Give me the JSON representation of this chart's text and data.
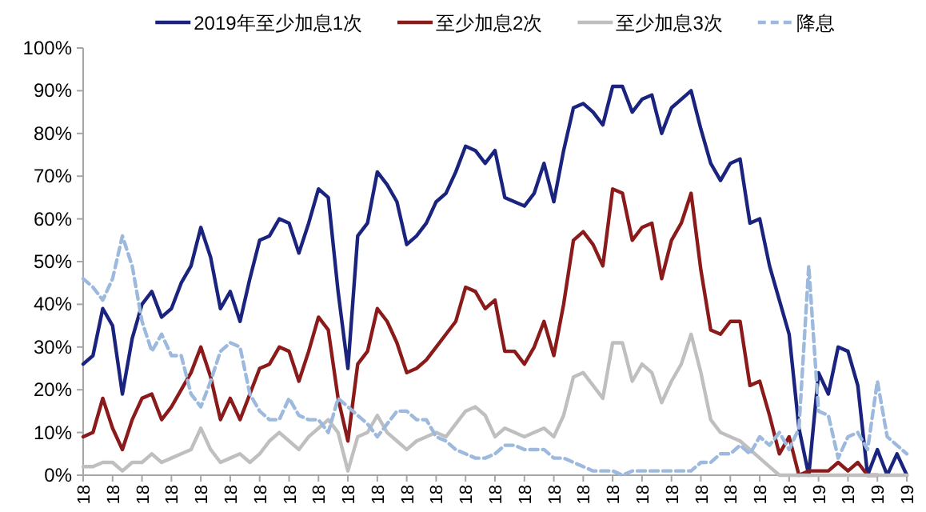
{
  "chart_data": {
    "type": "line",
    "legend": "top",
    "marker": "none",
    "ylim": [
      0,
      100
    ],
    "categories": [
      "18",
      null,
      null,
      "18",
      null,
      null,
      "18",
      null,
      null,
      "18",
      null,
      null,
      "18",
      null,
      null,
      "18",
      null,
      null,
      "18",
      null,
      null,
      "18",
      null,
      null,
      "18",
      null,
      null,
      "18",
      null,
      null,
      "18",
      null,
      null,
      "18",
      null,
      null,
      "18",
      null,
      null,
      "18",
      null,
      null,
      "18",
      null,
      null,
      "18",
      null,
      null,
      "18",
      null,
      null,
      "18",
      null,
      null,
      "18",
      null,
      null,
      "18",
      null,
      null,
      "18",
      null,
      null,
      "18",
      null,
      null,
      "18",
      null,
      null,
      "18",
      null,
      null,
      "18",
      null,
      null,
      "19",
      null,
      null,
      "19",
      null,
      null,
      "19",
      null,
      null,
      "19"
    ],
    "yticks": [
      {
        "value": 0,
        "label": "0%"
      },
      {
        "value": 10,
        "label": "10%"
      },
      {
        "value": 20,
        "label": "20%"
      },
      {
        "value": 30,
        "label": "30%"
      },
      {
        "value": 40,
        "label": "40%"
      },
      {
        "value": 50,
        "label": "50%"
      },
      {
        "value": 60,
        "label": "60%"
      },
      {
        "value": 70,
        "label": "70%"
      },
      {
        "value": 80,
        "label": "80%"
      },
      {
        "value": 90,
        "label": "90%"
      },
      {
        "value": 100,
        "label": "100%"
      }
    ],
    "series": [
      {
        "name": "2019年至少加息1次",
        "color": "#1a237e",
        "line_style": "solid",
        "values": [
          26,
          28,
          39,
          35,
          19,
          32,
          40,
          43,
          37,
          39,
          45,
          49,
          58,
          51,
          39,
          43,
          36,
          46,
          55,
          56,
          60,
          59,
          52,
          59,
          67,
          65,
          43,
          25,
          56,
          59,
          71,
          68,
          64,
          54,
          56,
          59,
          64,
          66,
          71,
          77,
          76,
          73,
          76,
          65,
          64,
          63,
          66,
          73,
          64,
          76,
          86,
          87,
          85,
          82,
          91,
          91,
          85,
          88,
          89,
          80,
          86,
          88,
          90,
          81,
          73,
          69,
          73,
          74,
          59,
          60,
          49,
          41,
          33,
          11,
          0,
          24,
          19,
          30,
          29,
          21,
          0,
          6,
          0,
          5,
          0
        ]
      },
      {
        "name": "至少加息2次",
        "color": "#8b1a1a",
        "line_style": "solid",
        "values": [
          9,
          10,
          18,
          11,
          6,
          13,
          18,
          19,
          13,
          16,
          20,
          24,
          30,
          23,
          13,
          18,
          13,
          19,
          25,
          26,
          30,
          29,
          22,
          29,
          37,
          34,
          18,
          8,
          26,
          29,
          39,
          36,
          31,
          24,
          25,
          27,
          30,
          33,
          36,
          44,
          43,
          39,
          41,
          29,
          29,
          26,
          30,
          36,
          28,
          40,
          55,
          57,
          54,
          49,
          67,
          66,
          55,
          58,
          59,
          46,
          55,
          59,
          66,
          48,
          34,
          33,
          36,
          36,
          21,
          22,
          14,
          5,
          9,
          0,
          1,
          1,
          1,
          3,
          1,
          3,
          0,
          0,
          null,
          null,
          null
        ]
      },
      {
        "name": "至少加息3次",
        "color": "#bfbfbf",
        "line_style": "solid",
        "values": [
          2,
          2,
          3,
          3,
          1,
          3,
          3,
          5,
          3,
          4,
          5,
          6,
          11,
          6,
          3,
          4,
          5,
          3,
          5,
          8,
          10,
          8,
          6,
          9,
          11,
          13,
          10,
          1,
          9,
          10,
          14,
          10,
          8,
          6,
          8,
          9,
          10,
          9,
          12,
          15,
          16,
          14,
          9,
          11,
          10,
          9,
          10,
          11,
          9,
          14,
          23,
          24,
          21,
          18,
          31,
          31,
          22,
          26,
          24,
          17,
          22,
          26,
          33,
          24,
          13,
          10,
          9,
          8,
          6,
          4,
          2,
          0,
          0,
          0,
          0,
          0,
          0,
          0,
          0,
          0,
          0,
          0,
          0,
          0,
          0
        ]
      },
      {
        "name": "降息",
        "color": "#9db9dd",
        "line_style": "dashed",
        "values": [
          46,
          44,
          41,
          46,
          56,
          49,
          36,
          29,
          33,
          28,
          28,
          19,
          16,
          22,
          29,
          31,
          30,
          19,
          15,
          13,
          13,
          18,
          14,
          13,
          13,
          10,
          18,
          16,
          14,
          12,
          9,
          12,
          15,
          15,
          13,
          13,
          9,
          8,
          6,
          5,
          4,
          4,
          5,
          7,
          7,
          6,
          6,
          6,
          4,
          4,
          3,
          2,
          1,
          1,
          1,
          0,
          1,
          1,
          1,
          1,
          1,
          1,
          1,
          3,
          3,
          5,
          5,
          7,
          5,
          9,
          7,
          10,
          6,
          11,
          49,
          15,
          14,
          4,
          9,
          10,
          6,
          22,
          9,
          7,
          5
        ]
      }
    ]
  }
}
